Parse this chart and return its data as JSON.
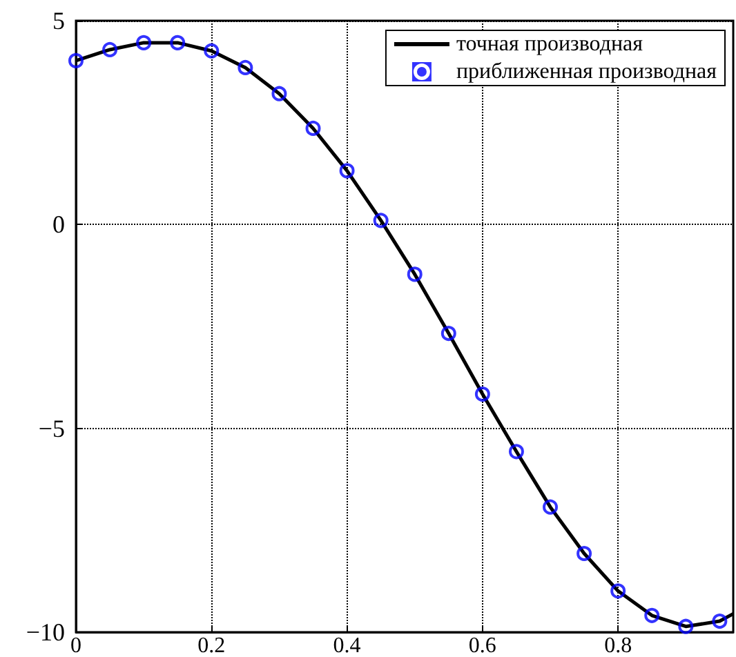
{
  "chart_data": {
    "type": "line",
    "xlim": [
      0,
      0.97
    ],
    "xticks": [
      0,
      0.2,
      0.4,
      0.6,
      0.8
    ],
    "ylim": [
      -10,
      5
    ],
    "yticks": [
      -10,
      -5,
      0,
      5
    ],
    "grid": true,
    "legend": "top right",
    "series": [
      {
        "name": "точная производная",
        "color": "#000000",
        "marker": "none",
        "line_style": "solid",
        "x": [
          0,
          0.05,
          0.1,
          0.15,
          0.2,
          0.25,
          0.3,
          0.35,
          0.4,
          0.45,
          0.5,
          0.55,
          0.6,
          0.65,
          0.7,
          0.75,
          0.8,
          0.85,
          0.9,
          0.95,
          0.97
        ],
        "values": [
          4.02,
          4.29,
          4.46,
          4.46,
          4.26,
          3.85,
          3.21,
          2.36,
          1.32,
          0.1,
          -1.22,
          -2.67,
          -4.16,
          -5.57,
          -6.93,
          -8.07,
          -8.99,
          -9.59,
          -9.86,
          -9.73,
          -9.55
        ]
      },
      {
        "name": "приближенная производная",
        "type": "scatter",
        "color": "#0000ff",
        "marker": "circle",
        "x": [
          0,
          0.05,
          0.1,
          0.15,
          0.2,
          0.25,
          0.3,
          0.35,
          0.4,
          0.45,
          0.5,
          0.55,
          0.6,
          0.65,
          0.7,
          0.75,
          0.8,
          0.85,
          0.9,
          0.95
        ],
        "values": [
          4.02,
          4.29,
          4.46,
          4.46,
          4.26,
          3.85,
          3.21,
          2.36,
          1.32,
          0.1,
          -1.22,
          -2.67,
          -4.16,
          -5.57,
          -6.93,
          -8.07,
          -8.99,
          -9.59,
          -9.86,
          -9.73
        ]
      }
    ]
  }
}
